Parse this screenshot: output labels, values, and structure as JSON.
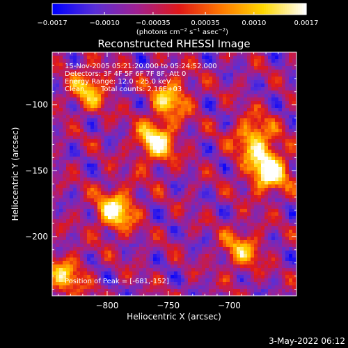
{
  "chart_data": {
    "type": "heatmap",
    "title": "Reconstructed RHESSI Image",
    "xlabel": "Heliocentric X (arcsec)",
    "ylabel": "Heliocentric Y (arcsec)",
    "xlim": [
      -845,
      -645
    ],
    "ylim": [
      -245,
      -60
    ],
    "x_ticks": [
      -800,
      -750,
      -700
    ],
    "y_ticks": [
      -100,
      -150,
      -200
    ],
    "x_tick_labels": [
      "−800",
      "−750",
      "−700"
    ],
    "y_tick_labels": [
      "−100",
      "−150",
      "−200"
    ],
    "colorbar": {
      "range": [
        -0.0017,
        0.0017
      ],
      "tick_values": [
        -0.0017,
        -0.001,
        -0.00035,
        0.00035,
        0.001,
        0.0017
      ],
      "tick_labels": [
        "−0.0017",
        "−0.0010",
        "−0.00035",
        "0.00035",
        "0.0010",
        "0.0017"
      ],
      "unit_label": {
        "prefix": "(photons cm",
        "exp1": "−2",
        "mid1": " s",
        "exp2": "−1",
        "mid2": " asec",
        "exp3": "−2",
        "suffix": ")"
      },
      "colormap": [
        "#0000ff",
        "#5a2fd6",
        "#a02090",
        "#e01818",
        "#ff7800",
        "#ffd800",
        "#ffffff"
      ]
    },
    "annotations": {
      "time_range": "15-Nov-2005 05:21:20.000 to 05:24:52.000",
      "detectors": "Detectors: 3F 4F 5F 6F 7F 8F, Att 0",
      "energy_range": "Energy Range: 12.0 - 25.0 keV",
      "clean_label": "Clean",
      "total_counts": "Total counts: 2.16E+03",
      "peak": "Position of Peak = [-681,-152]"
    },
    "peak": {
      "x": -681,
      "y": -152
    },
    "bright_sources": [
      {
        "x": -668,
        "y": -150,
        "intensity": 1.0
      },
      {
        "x": -680,
        "y": -125,
        "intensity": 0.7
      },
      {
        "x": -760,
        "y": -128,
        "intensity": 0.85
      },
      {
        "x": -748,
        "y": -95,
        "intensity": 0.65
      },
      {
        "x": -793,
        "y": -180,
        "intensity": 0.85
      },
      {
        "x": -815,
        "y": -88,
        "intensity": 0.6
      },
      {
        "x": -835,
        "y": -230,
        "intensity": 0.6
      },
      {
        "x": -690,
        "y": -210,
        "intensity": 0.55
      }
    ],
    "timestamp": "3-May-2022 06:12"
  }
}
